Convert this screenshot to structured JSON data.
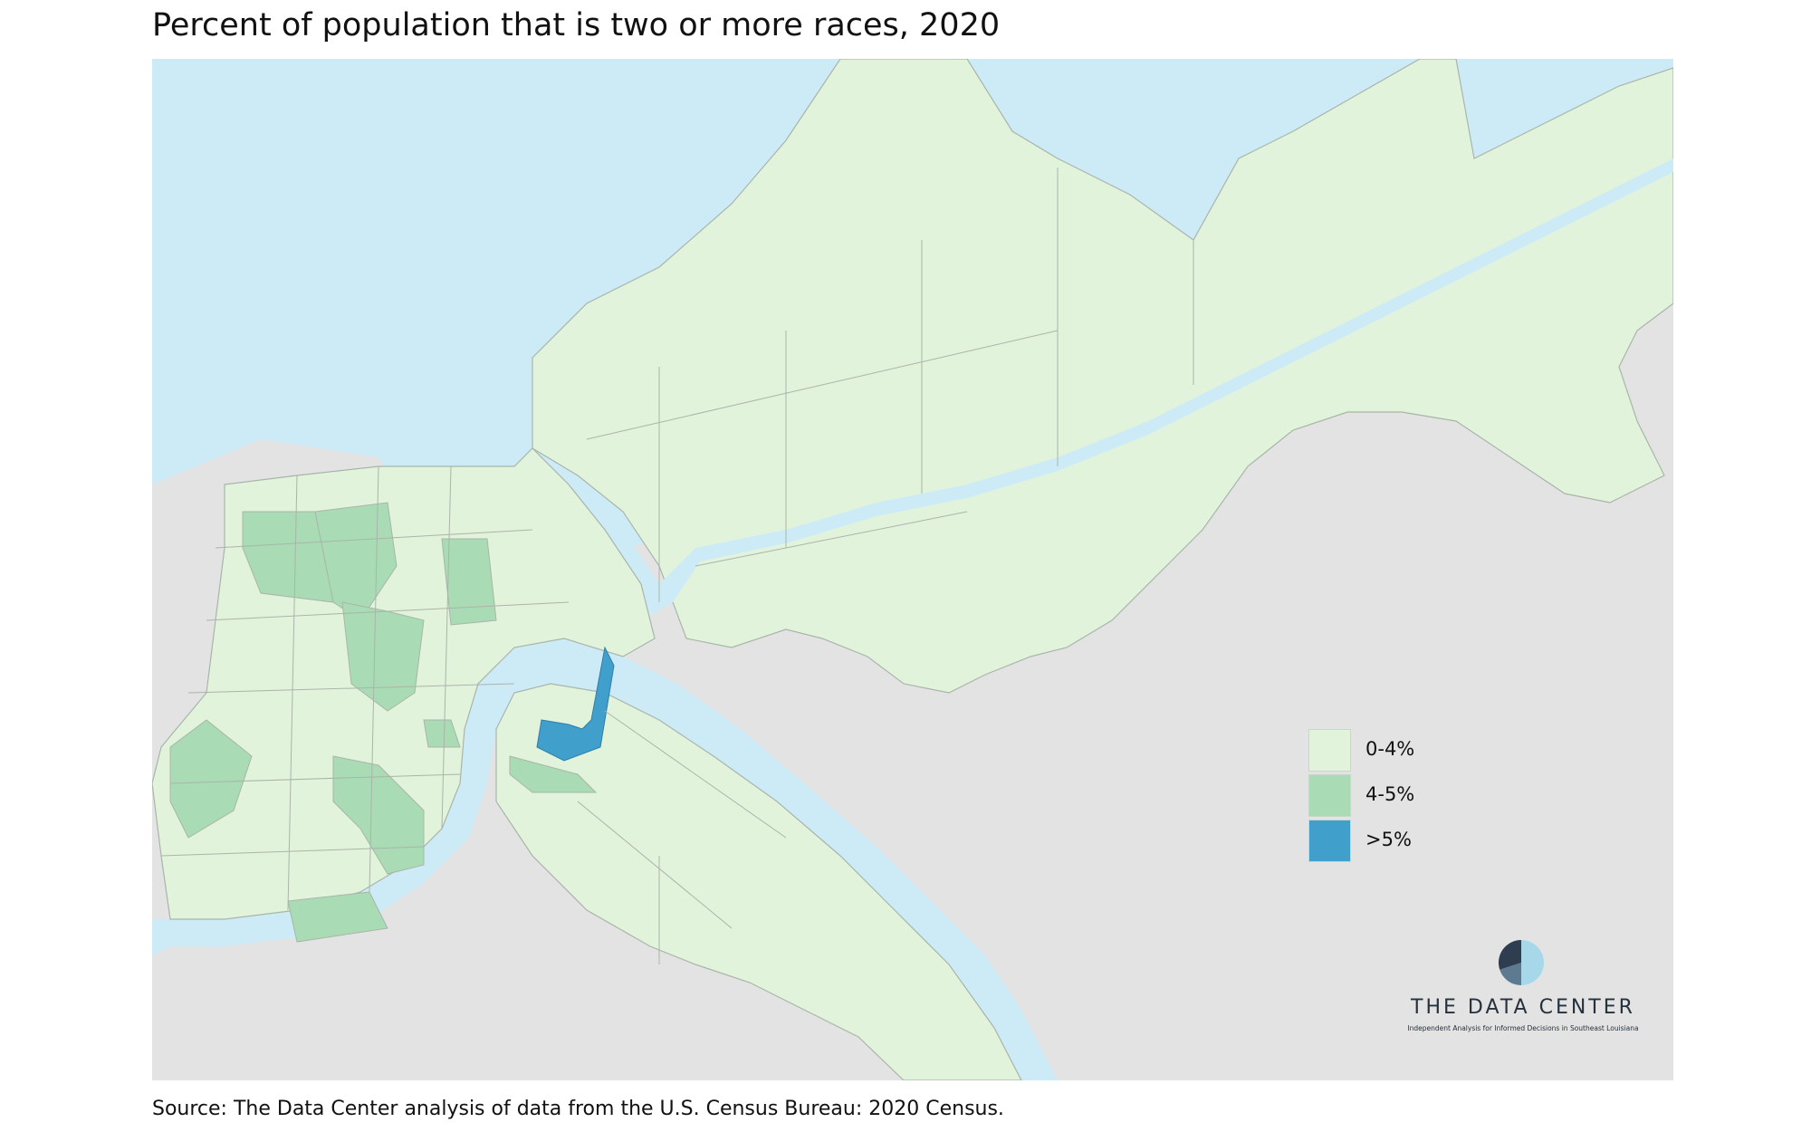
{
  "title": "Percent of population that is two or more races, 2020",
  "source": "Source: The Data Center analysis of data from the U.S. Census Bureau: 2020 Census.",
  "colors": {
    "water": "#cdebf7",
    "land_outside": "#e3e3e3",
    "tract_border": "#a9b5a9",
    "class_0_4": "#e2f3dc",
    "class_4_5": "#a9dbb5",
    "class_gt5": "#41a0cb"
  },
  "legend": {
    "items": [
      {
        "label": "0-4%",
        "color": "#e2f3dc"
      },
      {
        "label": "4-5%",
        "color": "#a9dbb5"
      },
      {
        "label": ">5%",
        "color": "#41a0cb"
      }
    ]
  },
  "logo": {
    "name": "THE DATA CENTER",
    "tagline": "Independent Analysis for Informed Decisions in Southeast Louisiana",
    "colors": [
      "#2e3d4f",
      "#5e7a90",
      "#a7d8ea"
    ]
  }
}
